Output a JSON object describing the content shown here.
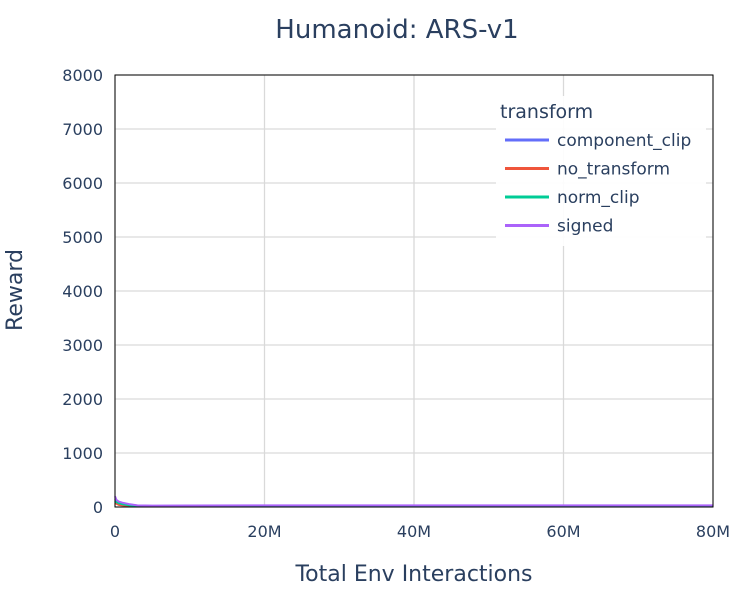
{
  "chart_data": {
    "type": "line",
    "title": "Humanoid: ARS-v1",
    "xlabel": "Total Env Interactions",
    "ylabel": "Reward",
    "xlim": [
      0,
      80000000
    ],
    "ylim": [
      0,
      8000
    ],
    "x_ticks": [
      0,
      20000000,
      40000000,
      60000000,
      80000000
    ],
    "x_tick_labels": [
      "0",
      "20M",
      "40M",
      "60M",
      "80M"
    ],
    "y_ticks": [
      0,
      1000,
      2000,
      3000,
      4000,
      5000,
      6000,
      7000,
      8000
    ],
    "y_tick_labels": [
      "0",
      "1000",
      "2000",
      "3000",
      "4000",
      "5000",
      "6000",
      "7000",
      "8000"
    ],
    "grid": true,
    "legend_title": "transform",
    "legend_position": "top-right",
    "series": [
      {
        "name": "component_clip",
        "color": "#636efa",
        "x": [
          0,
          200000,
          500000,
          1000000,
          2000000,
          3000000,
          5000000,
          10000000,
          20000000,
          30000000,
          40000000,
          50000000,
          60000000,
          70000000,
          80000000
        ],
        "y": [
          150,
          110,
          90,
          70,
          45,
          25,
          18,
          20,
          22,
          22,
          23,
          23,
          23,
          23,
          23
        ]
      },
      {
        "name": "no_transform",
        "color": "#ef553b",
        "x": [
          0,
          200000,
          500000,
          1000000,
          2000000,
          3000000,
          5000000,
          10000000,
          20000000,
          30000000,
          40000000,
          50000000,
          60000000,
          70000000,
          80000000
        ],
        "y": [
          80,
          60,
          40,
          30,
          20,
          15,
          12,
          14,
          15,
          16,
          16,
          16,
          16,
          16,
          16
        ]
      },
      {
        "name": "norm_clip",
        "color": "#00cc96",
        "x": [
          0,
          200000,
          500000,
          1000000,
          2000000,
          3000000,
          5000000,
          10000000,
          20000000,
          30000000,
          40000000,
          50000000,
          60000000,
          70000000,
          80000000
        ],
        "y": [
          120,
          90,
          70,
          50,
          30,
          20,
          16,
          18,
          20,
          20,
          21,
          21,
          21,
          21,
          21
        ]
      },
      {
        "name": "signed",
        "color": "#ab63fa",
        "x": [
          0,
          200000,
          500000,
          1000000,
          2000000,
          3000000,
          5000000,
          10000000,
          20000000,
          30000000,
          40000000,
          50000000,
          60000000,
          70000000,
          80000000
        ],
        "y": [
          200,
          130,
          100,
          80,
          50,
          30,
          25,
          28,
          30,
          30,
          31,
          31,
          31,
          31,
          31
        ]
      }
    ]
  }
}
